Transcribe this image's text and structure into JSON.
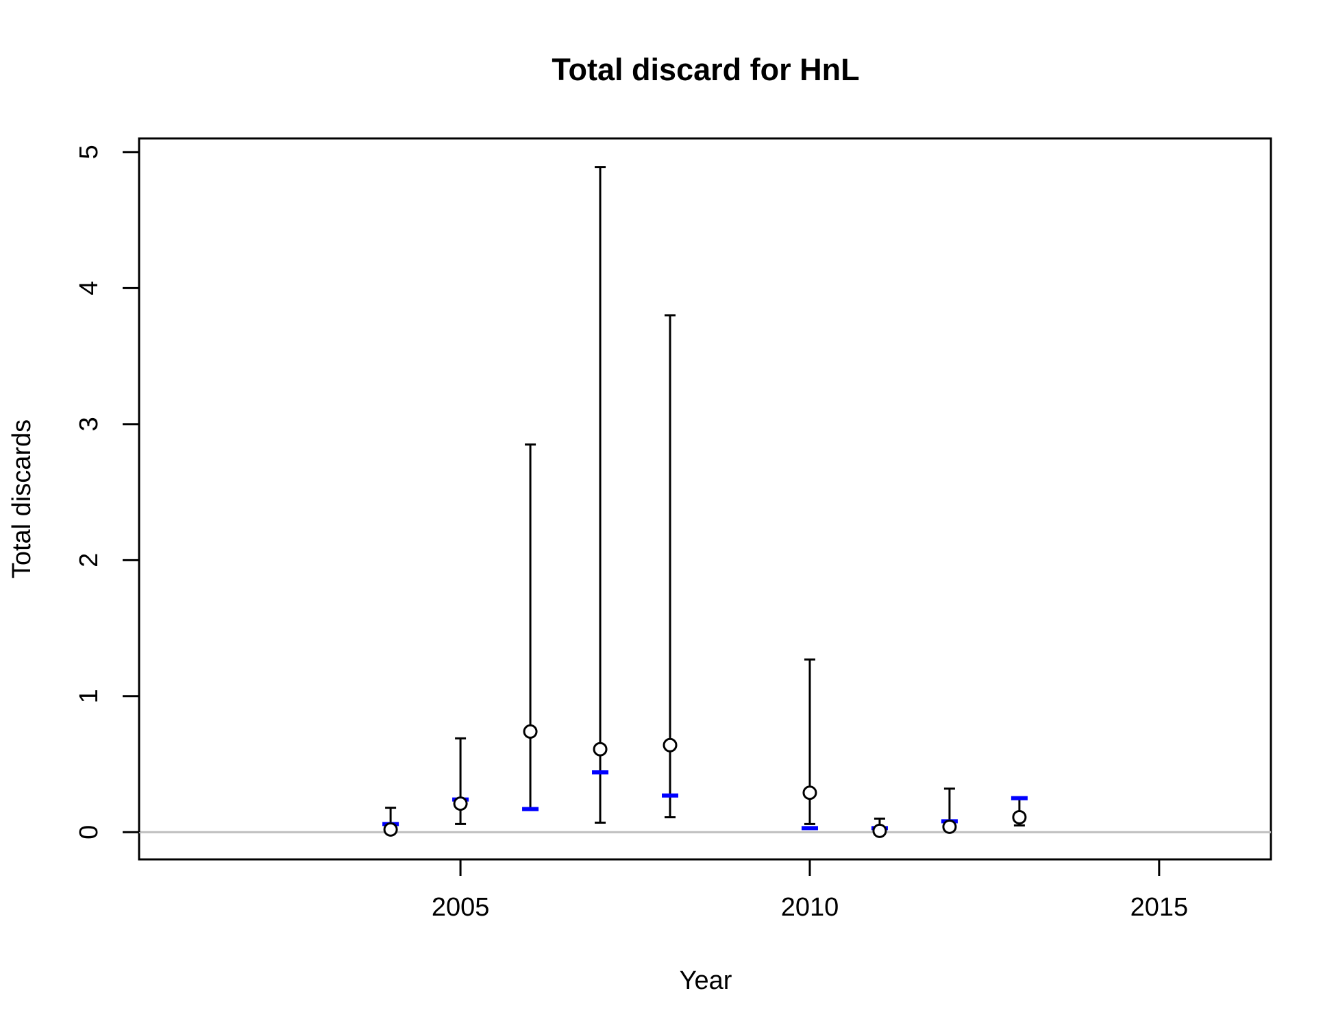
{
  "chart_data": {
    "type": "scatter",
    "title": "Total discard for HnL",
    "xlabel": "Year",
    "ylabel": "Total discards",
    "xlim": [
      2000.4,
      2016.6
    ],
    "ylim": [
      -0.2,
      5.1
    ],
    "x_ticks": [
      2005,
      2010,
      2015
    ],
    "y_ticks": [
      0,
      1,
      2,
      3,
      4,
      5
    ],
    "x_tick_labels": [
      "2005",
      "2010",
      "2015"
    ],
    "y_tick_labels": [
      "0",
      "1",
      "2",
      "3",
      "4",
      "5"
    ],
    "reference_line": 0,
    "grid": false,
    "legend": "none",
    "series": [
      {
        "marker": "open-circle",
        "color": "#000000",
        "points": [
          {
            "x": 2004,
            "y": 0.02,
            "lower": 0.0,
            "upper": 0.18
          },
          {
            "x": 2005,
            "y": 0.21,
            "lower": 0.06,
            "upper": 0.69
          },
          {
            "x": 2006,
            "y": 0.74,
            "lower": 0.17,
            "upper": 2.85
          },
          {
            "x": 2007,
            "y": 0.61,
            "lower": 0.07,
            "upper": 4.89
          },
          {
            "x": 2008,
            "y": 0.64,
            "lower": 0.11,
            "upper": 3.8
          },
          {
            "x": 2010,
            "y": 0.29,
            "lower": 0.06,
            "upper": 1.27
          },
          {
            "x": 2011,
            "y": 0.01,
            "lower": 0.0,
            "upper": 0.1
          },
          {
            "x": 2012,
            "y": 0.04,
            "lower": 0.06,
            "upper": 0.32
          },
          {
            "x": 2013,
            "y": 0.11,
            "lower": 0.05,
            "upper": 0.25
          }
        ]
      },
      {
        "marker": "dash",
        "color": "#0000ff",
        "points": [
          {
            "x": 2004,
            "y": 0.06
          },
          {
            "x": 2005,
            "y": 0.24
          },
          {
            "x": 2006,
            "y": 0.17
          },
          {
            "x": 2007,
            "y": 0.44
          },
          {
            "x": 2008,
            "y": 0.27
          },
          {
            "x": 2010,
            "y": 0.03
          },
          {
            "x": 2011,
            "y": 0.03
          },
          {
            "x": 2012,
            "y": 0.08
          },
          {
            "x": 2013,
            "y": 0.25
          }
        ]
      }
    ],
    "colors": {
      "axis": "#000000",
      "reference_line": "#bebebe",
      "estimate": "#0000ff",
      "observed": "#000000"
    }
  }
}
